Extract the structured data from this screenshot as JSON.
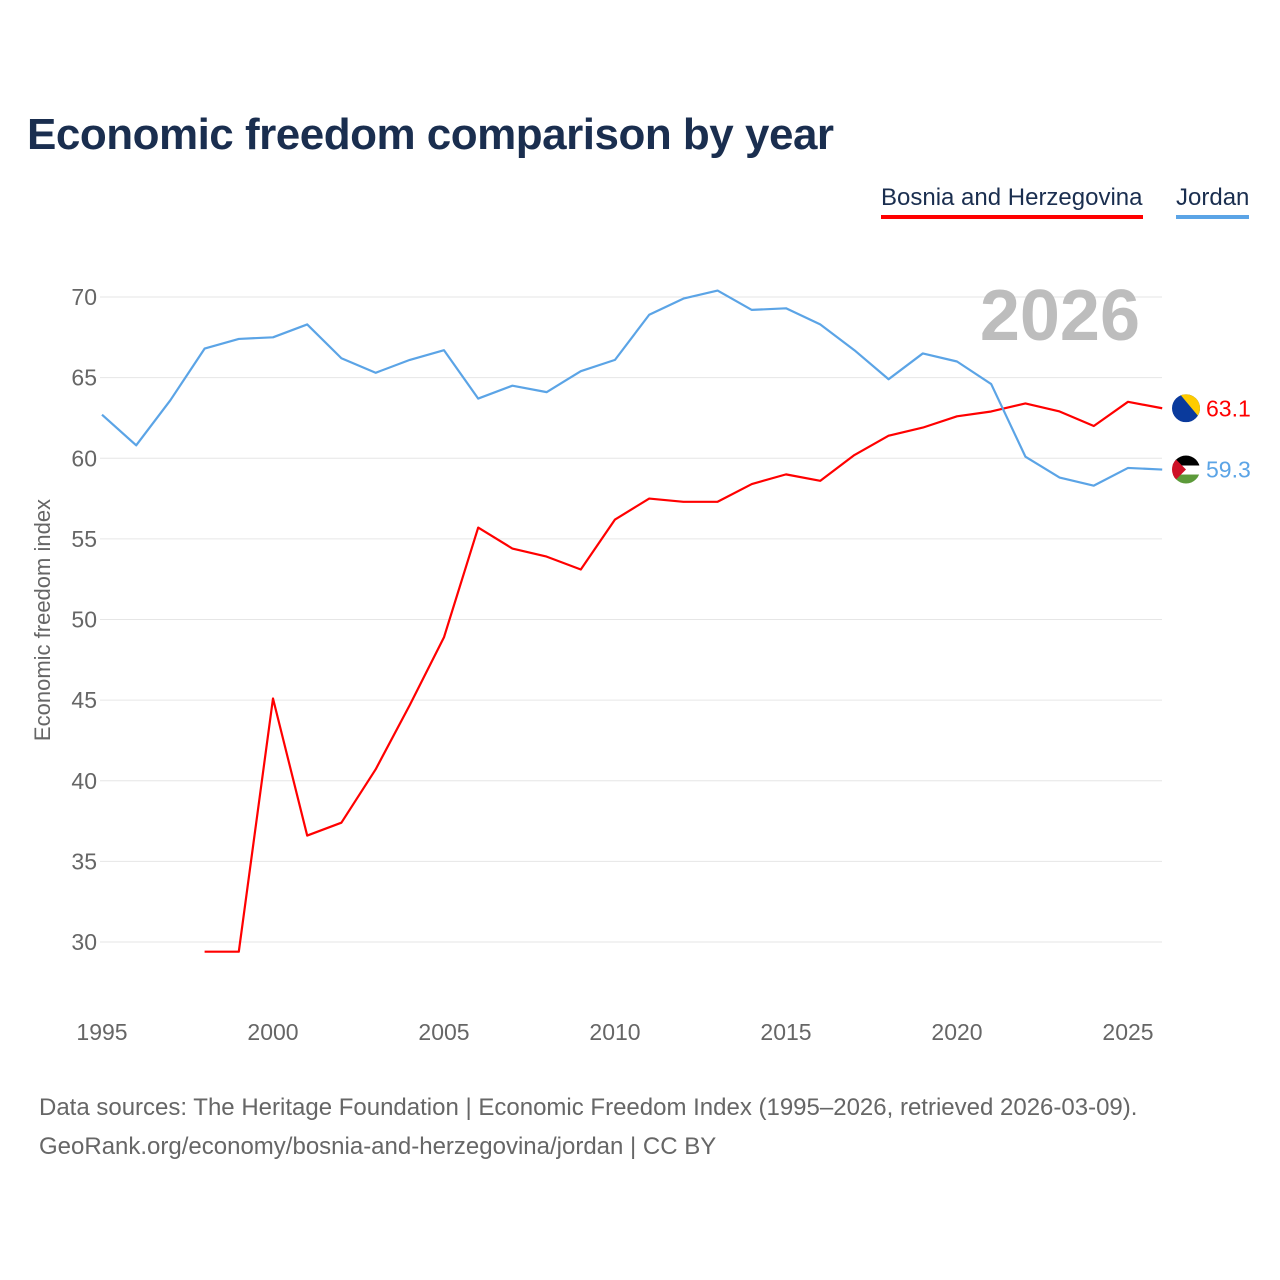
{
  "title": "Economic freedom comparison by year",
  "legend": [
    {
      "name": "Bosnia and Herzegovina",
      "color": "#ff0000"
    },
    {
      "name": "Jordan",
      "color": "#5ba4e6"
    }
  ],
  "footer": {
    "line1": "Data sources: The Heritage Foundation | Economic Freedom Index (1995–2026, retrieved 2026-03-09).",
    "line2": "GeoRank.org/economy/bosnia-and-herzegovina/jordan | CC BY"
  },
  "chart_data": {
    "type": "line",
    "title": "Economic freedom comparison by year",
    "xlabel": "",
    "ylabel": "Economic freedom index",
    "year_watermark": "2026",
    "xlim": [
      1995,
      2026
    ],
    "ylim": [
      26,
      72
    ],
    "x_ticks": [
      "1995",
      "2000",
      "2005",
      "2010",
      "2015",
      "2020",
      "2025"
    ],
    "y_ticks": [
      "30",
      "35",
      "40",
      "45",
      "50",
      "55",
      "60",
      "65",
      "70"
    ],
    "grid": true,
    "legend_position": "top-right",
    "series": [
      {
        "name": "Bosnia and Herzegovina",
        "color": "#ff0000",
        "end_label": "63.1",
        "x": [
          1998,
          1999,
          2000,
          2001,
          2002,
          2003,
          2004,
          2005,
          2006,
          2007,
          2008,
          2009,
          2010,
          2011,
          2012,
          2013,
          2014,
          2015,
          2016,
          2017,
          2018,
          2019,
          2020,
          2021,
          2022,
          2023,
          2024,
          2025,
          2026
        ],
        "values": [
          29.4,
          29.4,
          45.1,
          36.6,
          37.4,
          40.7,
          44.7,
          48.9,
          55.7,
          54.4,
          53.9,
          53.1,
          56.2,
          57.5,
          57.3,
          57.3,
          58.4,
          59.0,
          58.6,
          60.2,
          61.4,
          61.9,
          62.6,
          62.9,
          63.4,
          62.9,
          62.0,
          63.5,
          63.1
        ]
      },
      {
        "name": "Jordan",
        "color": "#5ba4e6",
        "end_label": "59.3",
        "x": [
          1995,
          1996,
          1997,
          1998,
          1999,
          2000,
          2001,
          2002,
          2003,
          2004,
          2005,
          2006,
          2007,
          2008,
          2009,
          2010,
          2011,
          2012,
          2013,
          2014,
          2015,
          2016,
          2017,
          2018,
          2019,
          2020,
          2021,
          2022,
          2023,
          2024,
          2025,
          2026
        ],
        "values": [
          62.7,
          60.8,
          63.6,
          66.8,
          67.4,
          67.5,
          68.3,
          66.2,
          65.3,
          66.1,
          66.7,
          63.7,
          64.5,
          64.1,
          65.4,
          66.1,
          68.9,
          69.9,
          70.4,
          69.2,
          69.3,
          68.3,
          66.7,
          64.9,
          66.5,
          66.0,
          64.6,
          60.1,
          58.8,
          58.3,
          59.4,
          59.3
        ]
      }
    ]
  }
}
